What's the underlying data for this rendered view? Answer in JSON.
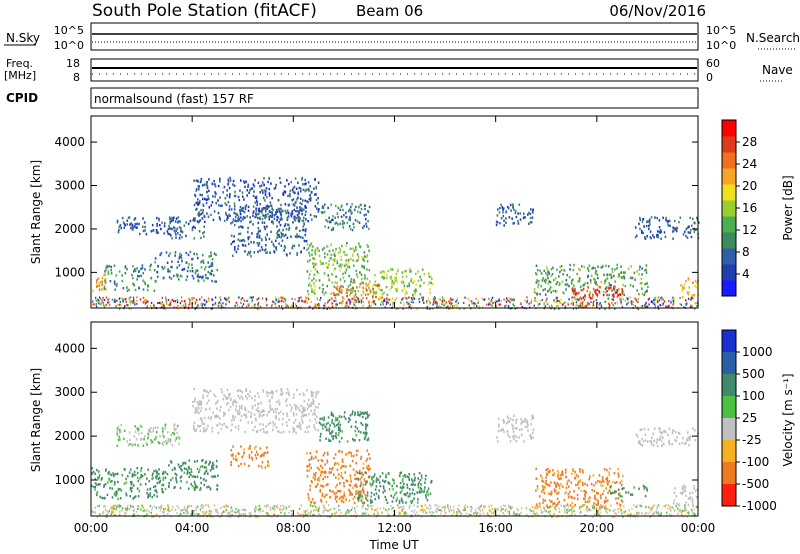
{
  "header": {
    "station": "South Pole Station (fitACF)",
    "beam": "Beam 06",
    "date": "06/Nov/2016"
  },
  "top_panels": {
    "nsky": {
      "label": "N.Sky",
      "tick_top": "10^5",
      "tick_bottom": "10^0"
    },
    "nsearch": {
      "label": "N.Search",
      "tick_top": "10^5",
      "tick_bottom": "10^0"
    },
    "freq": {
      "label_line1": "Freq.",
      "label_line2": "[MHz]",
      "tick_top": "18",
      "tick_bottom": "8"
    },
    "nave": {
      "label": "Nave",
      "tick_top": "60",
      "tick_bottom": "0"
    },
    "cpid": {
      "label": "CPID",
      "value": "normalsound (fast) 157 RF"
    }
  },
  "chart_data": [
    {
      "type": "heatmap",
      "name": "power",
      "ylabel": "Slant Range [km]",
      "yticks": [
        "1000",
        "2000",
        "3000",
        "4000"
      ],
      "ylim": [
        180,
        4600
      ],
      "xlim_hours": [
        0,
        24
      ],
      "colorbar": {
        "label": "Power [dB]",
        "ticks": [
          "4",
          "8",
          "12",
          "16",
          "20",
          "24",
          "28"
        ],
        "range": [
          0,
          32
        ],
        "colors": [
          "#1a1aff",
          "#1f3fb0",
          "#2f5fa8",
          "#3f8a5a",
          "#4caf50",
          "#9acd32",
          "#f0e020",
          "#f5a623",
          "#f07020",
          "#e03a1a",
          "#ff0000"
        ]
      },
      "regions": [
        {
          "x": [
            0.0,
            0.6
          ],
          "y": [
            600,
            1000
          ],
          "level": 22
        },
        {
          "x": [
            0.5,
            2.5
          ],
          "y": [
            600,
            1200
          ],
          "level": 10
        },
        {
          "x": [
            1.0,
            3.5
          ],
          "y": [
            1900,
            2300
          ],
          "level": 6
        },
        {
          "x": [
            2.5,
            5.0
          ],
          "y": [
            800,
            1500
          ],
          "level": 9
        },
        {
          "x": [
            3.0,
            4.5
          ],
          "y": [
            1800,
            2300
          ],
          "level": 7
        },
        {
          "x": [
            4.0,
            9.0
          ],
          "y": [
            2200,
            3200
          ],
          "level": 6
        },
        {
          "x": [
            5.5,
            8.5
          ],
          "y": [
            1400,
            2500
          ],
          "level": 7
        },
        {
          "x": [
            8.5,
            11.0
          ],
          "y": [
            500,
            1700
          ],
          "level": 14
        },
        {
          "x": [
            9.5,
            11.5
          ],
          "y": [
            300,
            800
          ],
          "level": 24
        },
        {
          "x": [
            11.0,
            13.5
          ],
          "y": [
            500,
            1100
          ],
          "level": 16
        },
        {
          "x": [
            9.0,
            11.0
          ],
          "y": [
            2000,
            2600
          ],
          "level": 9
        },
        {
          "x": [
            16.0,
            17.5
          ],
          "y": [
            2100,
            2600
          ],
          "level": 7
        },
        {
          "x": [
            17.5,
            22.0
          ],
          "y": [
            500,
            1200
          ],
          "level": 12
        },
        {
          "x": [
            19.0,
            21.0
          ],
          "y": [
            400,
            700
          ],
          "level": 28
        },
        {
          "x": [
            21.5,
            24.0
          ],
          "y": [
            1800,
            2300
          ],
          "level": 6
        },
        {
          "x": [
            23.3,
            24.0
          ],
          "y": [
            450,
            900
          ],
          "level": 20
        }
      ]
    },
    {
      "type": "heatmap",
      "name": "velocity",
      "ylabel": "Slant Range [km]",
      "xlabel": "Time UT",
      "yticks": [
        "1000",
        "2000",
        "3000",
        "4000"
      ],
      "xticks": [
        "00:00",
        "04:00",
        "08:00",
        "12:00",
        "16:00",
        "20:00",
        "00:00"
      ],
      "ylim": [
        180,
        4600
      ],
      "xlim_hours": [
        0,
        24
      ],
      "colorbar": {
        "label": "Velocity [m s⁻¹]",
        "ticks": [
          "1000",
          "500",
          "100",
          "25",
          "-25",
          "-100",
          "-500",
          "-1000"
        ],
        "colors": [
          "#1a2fd0",
          "#2a5fa8",
          "#3f8a6a",
          "#4cc040",
          "#c0c0c0",
          "#f5b020",
          "#f07a20",
          "#ff2010"
        ]
      },
      "regions": [
        {
          "x": [
            0.0,
            3.0
          ],
          "y": [
            600,
            1300
          ],
          "level": 100
        },
        {
          "x": [
            1.0,
            3.5
          ],
          "y": [
            1800,
            2300
          ],
          "level": 25
        },
        {
          "x": [
            3.0,
            5.0
          ],
          "y": [
            800,
            1500
          ],
          "level": 100
        },
        {
          "x": [
            4.0,
            9.0
          ],
          "y": [
            2100,
            3100
          ],
          "level": 0
        },
        {
          "x": [
            5.5,
            7.0
          ],
          "y": [
            1300,
            1800
          ],
          "level": -100
        },
        {
          "x": [
            8.5,
            11.0
          ],
          "y": [
            500,
            1700
          ],
          "level": -100
        },
        {
          "x": [
            10.5,
            13.5
          ],
          "y": [
            500,
            1200
          ],
          "level": 100
        },
        {
          "x": [
            9.0,
            11.0
          ],
          "y": [
            1900,
            2600
          ],
          "level": 100
        },
        {
          "x": [
            16.0,
            17.5
          ],
          "y": [
            1900,
            2500
          ],
          "level": 0
        },
        {
          "x": [
            17.5,
            21.0
          ],
          "y": [
            350,
            1300
          ],
          "level": -100
        },
        {
          "x": [
            20.5,
            22.0
          ],
          "y": [
            650,
            900
          ],
          "level": 100
        },
        {
          "x": [
            21.5,
            24.0
          ],
          "y": [
            1800,
            2200
          ],
          "level": 0
        },
        {
          "x": [
            23.0,
            24.0
          ],
          "y": [
            450,
            900
          ],
          "level": 0
        }
      ]
    }
  ]
}
